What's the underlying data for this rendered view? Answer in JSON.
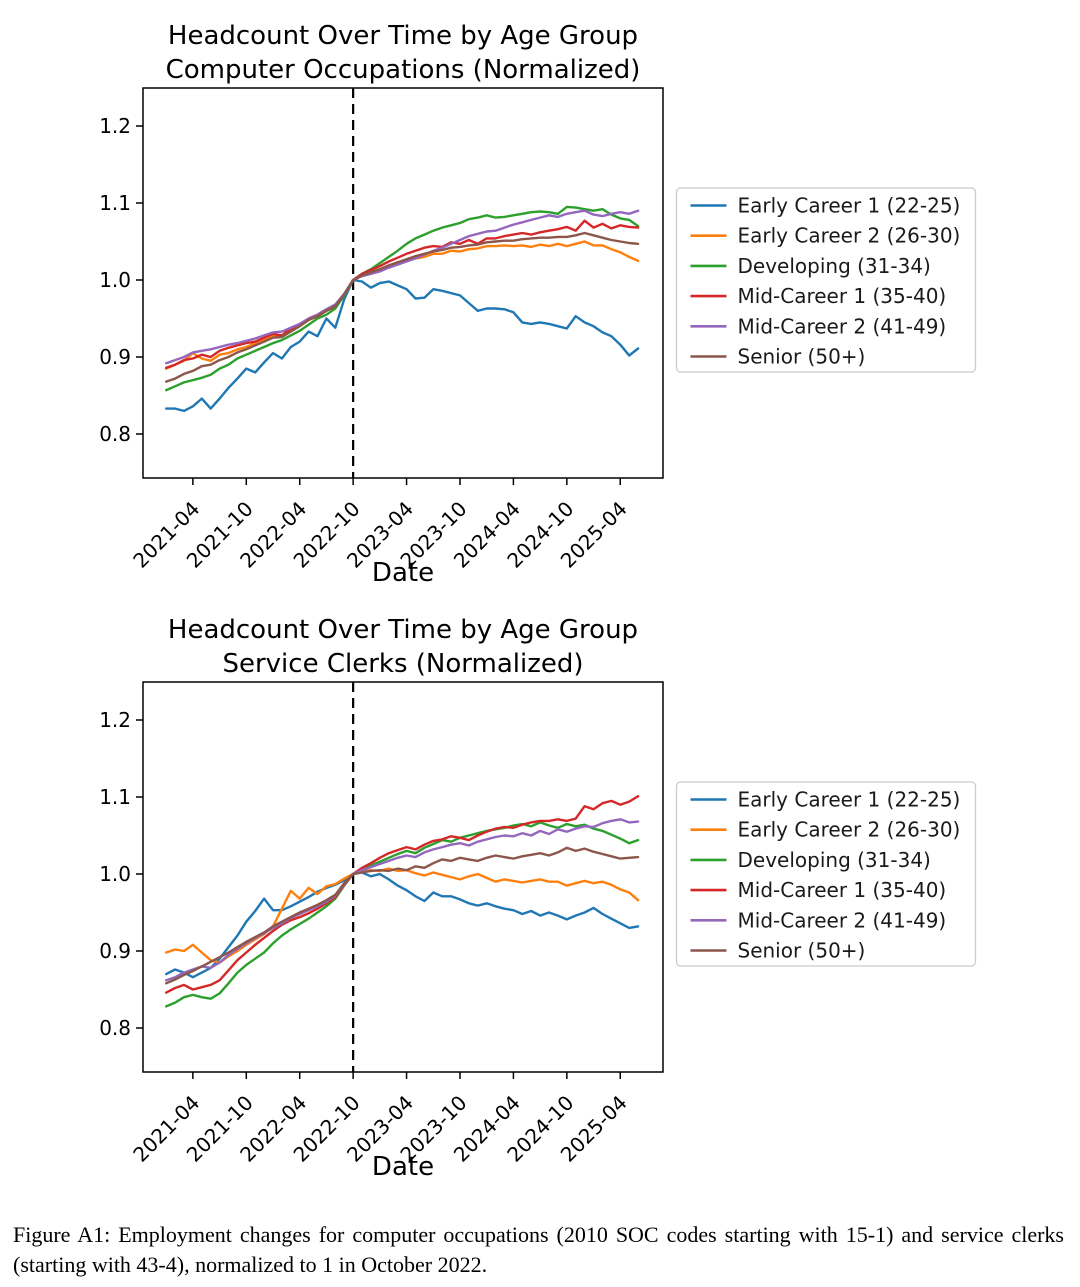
{
  "caption": {
    "text": "Figure A1: Employment changes for computer occupations (2010 SOC codes starting with 15-1) and service clerks (starting with 43-4), normalized to 1 in October 2022."
  },
  "chart_data": [
    {
      "type": "line",
      "title": [
        "Headcount Over Time by Age Group",
        "Computer Occupations (Normalized)"
      ],
      "xlabel": "Date",
      "grid": false,
      "legend_position": "right",
      "vline": "2022-10",
      "vline_style": "dashed-black",
      "ylim": [
        0.745,
        1.249
      ],
      "yticks": [
        "0.8",
        "0.9",
        "1.0",
        "1.1",
        "1.2"
      ],
      "xticks": [
        "2021-04",
        "2021-10",
        "2022-04",
        "2022-10",
        "2023-04",
        "2023-10",
        "2024-04",
        "2024-10",
        "2025-04"
      ],
      "x": [
        "2021-01",
        "2021-02",
        "2021-03",
        "2021-04",
        "2021-05",
        "2021-06",
        "2021-07",
        "2021-08",
        "2021-09",
        "2021-10",
        "2021-11",
        "2021-12",
        "2022-01",
        "2022-02",
        "2022-03",
        "2022-04",
        "2022-05",
        "2022-06",
        "2022-07",
        "2022-08",
        "2022-09",
        "2022-10",
        "2022-11",
        "2022-12",
        "2023-01",
        "2023-02",
        "2023-03",
        "2023-04",
        "2023-05",
        "2023-06",
        "2023-07",
        "2023-08",
        "2023-09",
        "2023-10",
        "2023-11",
        "2023-12",
        "2024-01",
        "2024-02",
        "2024-03",
        "2024-04",
        "2024-05",
        "2024-06",
        "2024-07",
        "2024-08",
        "2024-09",
        "2024-10",
        "2024-11",
        "2024-12",
        "2025-01",
        "2025-02",
        "2025-03",
        "2025-04",
        "2025-05",
        "2025-06"
      ],
      "series": [
        {
          "name": "Early Career 1 (22-25)",
          "color": "#1f77b4",
          "values": [
            0.833,
            0.833,
            0.83,
            0.836,
            0.846,
            0.833,
            0.846,
            0.86,
            0.872,
            0.885,
            0.88,
            0.893,
            0.905,
            0.898,
            0.913,
            0.92,
            0.933,
            0.927,
            0.95,
            0.938,
            0.975,
            1.0,
            0.998,
            0.99,
            0.996,
            0.998,
            0.993,
            0.988,
            0.976,
            0.977,
            0.988,
            0.986,
            0.983,
            0.98,
            0.97,
            0.96,
            0.963,
            0.963,
            0.962,
            0.958,
            0.945,
            0.943,
            0.945,
            0.943,
            0.94,
            0.937,
            0.953,
            0.945,
            0.94,
            0.932,
            0.927,
            0.916,
            0.902,
            0.911
          ]
        },
        {
          "name": "Early Career 2 (26-30)",
          "color": "#ff7f0e",
          "values": [
            0.885,
            0.89,
            0.895,
            0.905,
            0.898,
            0.895,
            0.903,
            0.905,
            0.91,
            0.913,
            0.918,
            0.922,
            0.928,
            0.927,
            0.935,
            0.94,
            0.948,
            0.953,
            0.96,
            0.965,
            0.98,
            1.0,
            1.006,
            1.01,
            1.013,
            1.018,
            1.021,
            1.025,
            1.028,
            1.03,
            1.034,
            1.034,
            1.038,
            1.037,
            1.04,
            1.041,
            1.044,
            1.044,
            1.045,
            1.044,
            1.045,
            1.043,
            1.046,
            1.044,
            1.047,
            1.044,
            1.047,
            1.05,
            1.045,
            1.045,
            1.04,
            1.036,
            1.03,
            1.025
          ]
        },
        {
          "name": "Developing (31-34)",
          "color": "#2ca02c",
          "values": [
            0.857,
            0.862,
            0.867,
            0.87,
            0.873,
            0.877,
            0.885,
            0.89,
            0.898,
            0.903,
            0.908,
            0.913,
            0.918,
            0.922,
            0.928,
            0.934,
            0.942,
            0.95,
            0.955,
            0.963,
            0.98,
            1.0,
            1.008,
            1.014,
            1.022,
            1.03,
            1.038,
            1.047,
            1.054,
            1.059,
            1.064,
            1.068,
            1.071,
            1.074,
            1.079,
            1.081,
            1.084,
            1.081,
            1.082,
            1.084,
            1.086,
            1.088,
            1.089,
            1.088,
            1.086,
            1.095,
            1.094,
            1.092,
            1.09,
            1.092,
            1.085,
            1.08,
            1.078,
            1.07
          ]
        },
        {
          "name": "Mid-Career 1 (35-40)",
          "color": "#d62728",
          "values": [
            0.886,
            0.89,
            0.896,
            0.898,
            0.903,
            0.9,
            0.908,
            0.912,
            0.915,
            0.918,
            0.92,
            0.925,
            0.93,
            0.928,
            0.937,
            0.942,
            0.95,
            0.955,
            0.962,
            0.968,
            0.982,
            1.0,
            1.008,
            1.013,
            1.018,
            1.024,
            1.029,
            1.034,
            1.038,
            1.042,
            1.044,
            1.043,
            1.049,
            1.047,
            1.052,
            1.047,
            1.054,
            1.054,
            1.057,
            1.059,
            1.061,
            1.059,
            1.062,
            1.064,
            1.066,
            1.069,
            1.064,
            1.077,
            1.068,
            1.073,
            1.067,
            1.071,
            1.069,
            1.068
          ]
        },
        {
          "name": "Mid-Career 2 (41-49)",
          "color": "#9467bd",
          "values": [
            0.892,
            0.896,
            0.9,
            0.906,
            0.908,
            0.91,
            0.913,
            0.916,
            0.918,
            0.921,
            0.924,
            0.928,
            0.932,
            0.933,
            0.938,
            0.943,
            0.95,
            0.955,
            0.962,
            0.968,
            0.982,
            1.0,
            1.005,
            1.008,
            1.011,
            1.016,
            1.02,
            1.024,
            1.028,
            1.033,
            1.038,
            1.042,
            1.047,
            1.052,
            1.057,
            1.06,
            1.063,
            1.064,
            1.068,
            1.072,
            1.075,
            1.078,
            1.081,
            1.084,
            1.082,
            1.086,
            1.088,
            1.09,
            1.085,
            1.083,
            1.086,
            1.088,
            1.086,
            1.09
          ]
        },
        {
          "name": "Senior (50+)",
          "color": "#8c564b",
          "values": [
            0.868,
            0.872,
            0.878,
            0.882,
            0.888,
            0.89,
            0.896,
            0.9,
            0.906,
            0.91,
            0.915,
            0.92,
            0.925,
            0.926,
            0.933,
            0.94,
            0.948,
            0.953,
            0.96,
            0.966,
            0.981,
            1.0,
            1.006,
            1.01,
            1.014,
            1.019,
            1.023,
            1.027,
            1.031,
            1.034,
            1.037,
            1.039,
            1.042,
            1.043,
            1.045,
            1.046,
            1.049,
            1.05,
            1.051,
            1.051,
            1.053,
            1.054,
            1.055,
            1.055,
            1.056,
            1.056,
            1.058,
            1.061,
            1.058,
            1.055,
            1.052,
            1.05,
            1.048,
            1.047
          ]
        }
      ]
    },
    {
      "type": "line",
      "title": [
        "Headcount Over Time by Age Group",
        "Service Clerks (Normalized)"
      ],
      "xlabel": "Date",
      "grid": false,
      "legend_position": "right",
      "vline": "2022-10",
      "vline_style": "dashed-black",
      "ylim": [
        0.745,
        1.249
      ],
      "yticks": [
        "0.8",
        "0.9",
        "1.0",
        "1.1",
        "1.2"
      ],
      "xticks": [
        "2021-04",
        "2021-10",
        "2022-04",
        "2022-10",
        "2023-04",
        "2023-10",
        "2024-04",
        "2024-10",
        "2025-04"
      ],
      "x": [
        "2021-01",
        "2021-02",
        "2021-03",
        "2021-04",
        "2021-05",
        "2021-06",
        "2021-07",
        "2021-08",
        "2021-09",
        "2021-10",
        "2021-11",
        "2021-12",
        "2022-01",
        "2022-02",
        "2022-03",
        "2022-04",
        "2022-05",
        "2022-06",
        "2022-07",
        "2022-08",
        "2022-09",
        "2022-10",
        "2022-11",
        "2022-12",
        "2023-01",
        "2023-02",
        "2023-03",
        "2023-04",
        "2023-05",
        "2023-06",
        "2023-07",
        "2023-08",
        "2023-09",
        "2023-10",
        "2023-11",
        "2023-12",
        "2024-01",
        "2024-02",
        "2024-03",
        "2024-04",
        "2024-05",
        "2024-06",
        "2024-07",
        "2024-08",
        "2024-09",
        "2024-10",
        "2024-11",
        "2024-12",
        "2025-01",
        "2025-02",
        "2025-03",
        "2025-04",
        "2025-05",
        "2025-06"
      ],
      "series": [
        {
          "name": "Early Career 1 (22-25)",
          "color": "#1f77b4",
          "values": [
            0.87,
            0.876,
            0.872,
            0.866,
            0.872,
            0.878,
            0.89,
            0.905,
            0.92,
            0.938,
            0.952,
            0.968,
            0.953,
            0.953,
            0.958,
            0.964,
            0.97,
            0.977,
            0.982,
            0.986,
            0.992,
            1.0,
            1.002,
            0.997,
            1.0,
            0.993,
            0.985,
            0.979,
            0.971,
            0.965,
            0.976,
            0.971,
            0.971,
            0.967,
            0.962,
            0.959,
            0.962,
            0.958,
            0.955,
            0.953,
            0.948,
            0.952,
            0.946,
            0.95,
            0.946,
            0.941,
            0.946,
            0.95,
            0.956,
            0.948,
            0.942,
            0.936,
            0.93,
            0.932
          ]
        },
        {
          "name": "Early Career 2 (26-30)",
          "color": "#ff7f0e",
          "values": [
            0.898,
            0.902,
            0.9,
            0.908,
            0.898,
            0.888,
            0.885,
            0.893,
            0.9,
            0.908,
            0.915,
            0.922,
            0.932,
            0.955,
            0.978,
            0.968,
            0.982,
            0.974,
            0.984,
            0.987,
            0.994,
            1.0,
            1.003,
            1.005,
            1.004,
            1.007,
            1.004,
            1.005,
            1.001,
            0.998,
            1.002,
            0.999,
            0.996,
            0.993,
            0.997,
            1.0,
            0.995,
            0.99,
            0.993,
            0.991,
            0.989,
            0.991,
            0.993,
            0.99,
            0.99,
            0.985,
            0.988,
            0.991,
            0.988,
            0.99,
            0.986,
            0.98,
            0.976,
            0.966
          ]
        },
        {
          "name": "Developing (31-34)",
          "color": "#2ca02c",
          "values": [
            0.828,
            0.833,
            0.84,
            0.843,
            0.84,
            0.838,
            0.845,
            0.858,
            0.872,
            0.882,
            0.89,
            0.898,
            0.91,
            0.92,
            0.928,
            0.935,
            0.942,
            0.95,
            0.958,
            0.968,
            0.985,
            1.0,
            1.006,
            1.011,
            1.016,
            1.021,
            1.026,
            1.03,
            1.027,
            1.034,
            1.039,
            1.044,
            1.042,
            1.047,
            1.05,
            1.053,
            1.056,
            1.058,
            1.06,
            1.063,
            1.065,
            1.062,
            1.067,
            1.063,
            1.06,
            1.065,
            1.062,
            1.064,
            1.059,
            1.056,
            1.051,
            1.046,
            1.04,
            1.044
          ]
        },
        {
          "name": "Mid-Career 1 (35-40)",
          "color": "#d62728",
          "values": [
            0.846,
            0.852,
            0.856,
            0.85,
            0.853,
            0.856,
            0.862,
            0.875,
            0.888,
            0.898,
            0.908,
            0.917,
            0.926,
            0.934,
            0.94,
            0.944,
            0.949,
            0.955,
            0.962,
            0.97,
            0.986,
            1.0,
            1.008,
            1.014,
            1.021,
            1.027,
            1.031,
            1.035,
            1.032,
            1.038,
            1.043,
            1.045,
            1.049,
            1.047,
            1.044,
            1.05,
            1.055,
            1.059,
            1.061,
            1.06,
            1.064,
            1.067,
            1.069,
            1.069,
            1.071,
            1.069,
            1.072,
            1.088,
            1.084,
            1.092,
            1.095,
            1.09,
            1.094,
            1.101
          ]
        },
        {
          "name": "Mid-Career 2 (41-49)",
          "color": "#9467bd",
          "values": [
            0.862,
            0.866,
            0.872,
            0.876,
            0.88,
            0.878,
            0.885,
            0.895,
            0.903,
            0.91,
            0.917,
            0.923,
            0.93,
            0.936,
            0.943,
            0.948,
            0.953,
            0.958,
            0.964,
            0.972,
            0.987,
            1.0,
            1.005,
            1.009,
            1.013,
            1.017,
            1.021,
            1.024,
            1.022,
            1.028,
            1.032,
            1.035,
            1.038,
            1.04,
            1.037,
            1.042,
            1.045,
            1.048,
            1.05,
            1.049,
            1.053,
            1.05,
            1.056,
            1.052,
            1.058,
            1.055,
            1.059,
            1.062,
            1.061,
            1.066,
            1.069,
            1.071,
            1.067,
            1.068
          ]
        },
        {
          "name": "Senior (50+)",
          "color": "#8c564b",
          "values": [
            0.858,
            0.863,
            0.869,
            0.874,
            0.88,
            0.886,
            0.892,
            0.898,
            0.905,
            0.912,
            0.918,
            0.924,
            0.932,
            0.938,
            0.944,
            0.95,
            0.955,
            0.96,
            0.966,
            0.973,
            0.988,
            1.0,
            1.002,
            1.004,
            1.005,
            1.004,
            1.007,
            1.005,
            1.01,
            1.008,
            1.014,
            1.019,
            1.017,
            1.021,
            1.019,
            1.017,
            1.021,
            1.024,
            1.022,
            1.02,
            1.023,
            1.025,
            1.027,
            1.024,
            1.028,
            1.034,
            1.03,
            1.033,
            1.029,
            1.026,
            1.023,
            1.02,
            1.021,
            1.022
          ]
        }
      ]
    }
  ]
}
